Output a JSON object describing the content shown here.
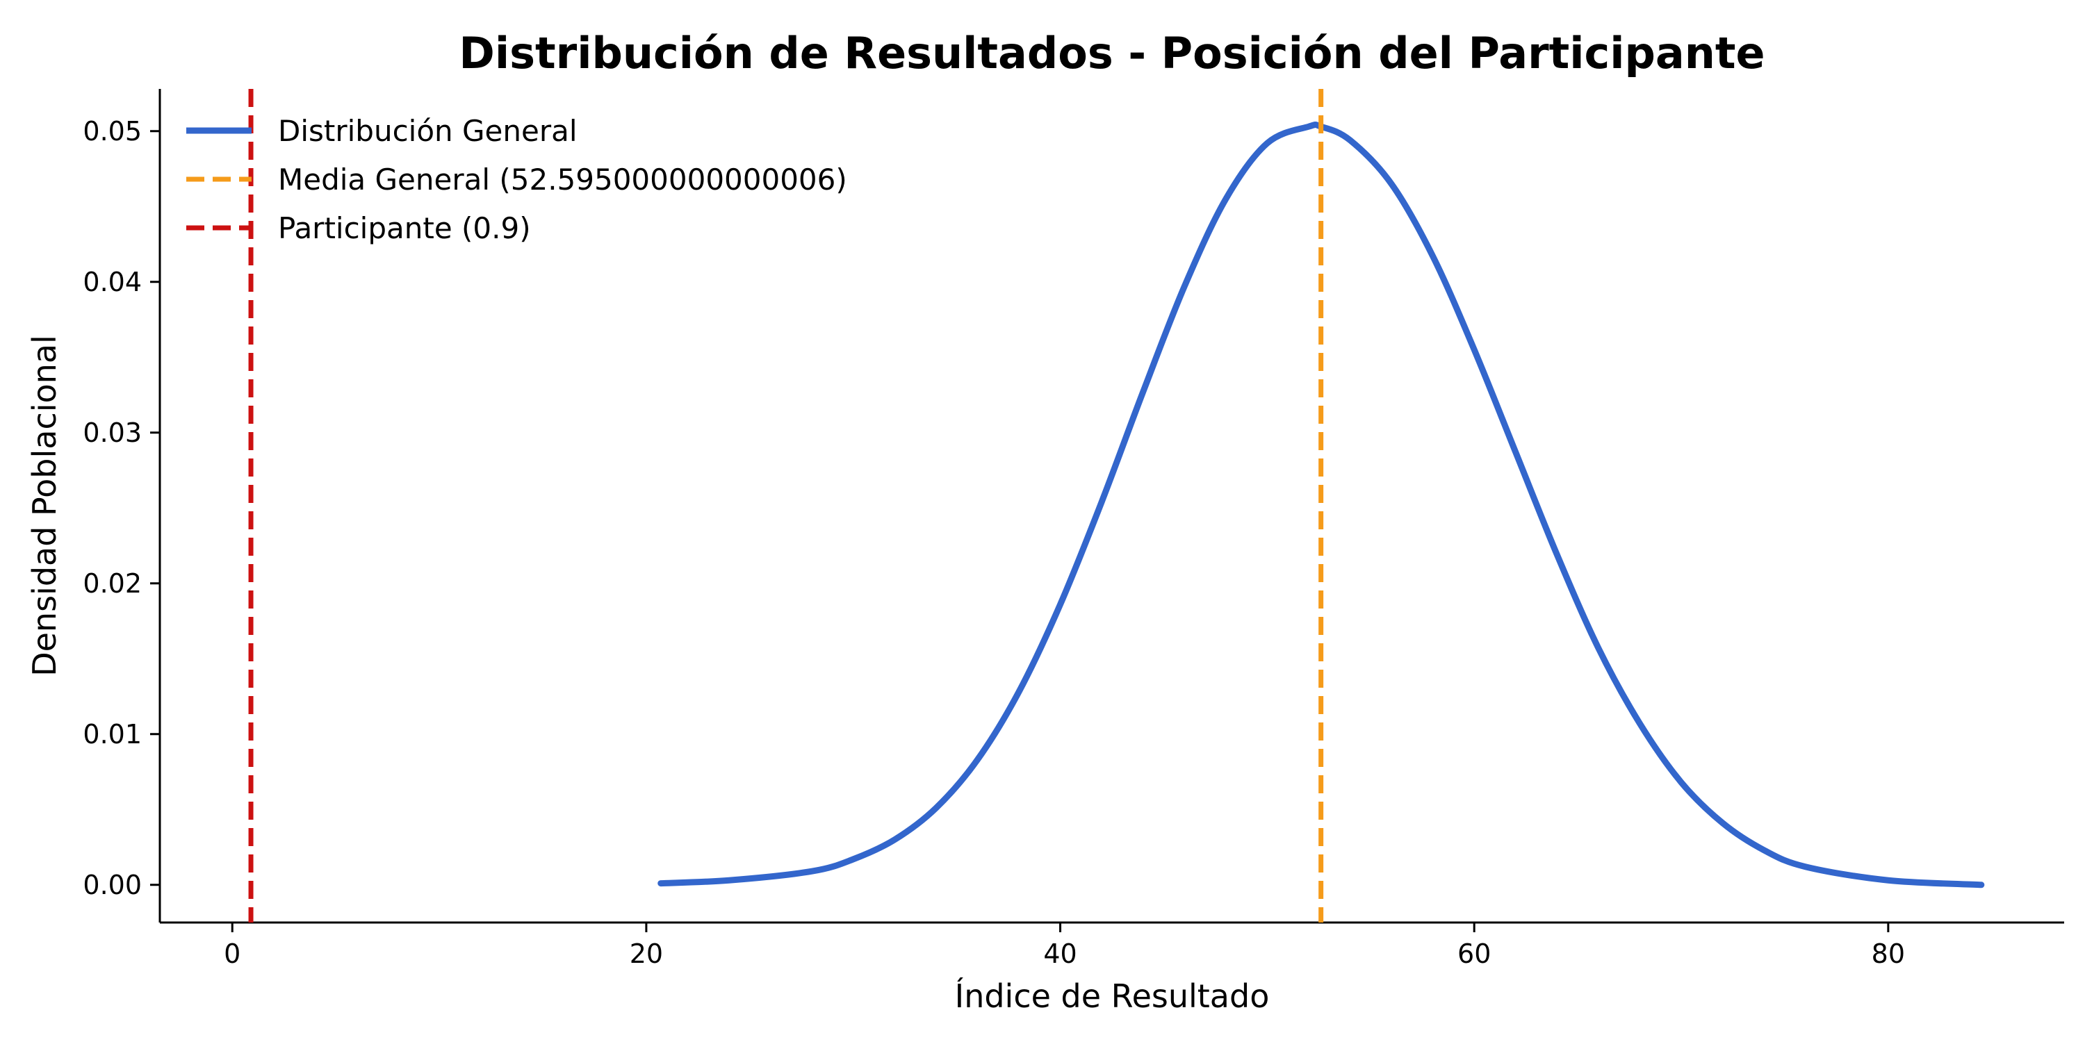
{
  "chart_data": {
    "type": "line",
    "title": "Distribución de Resultados - Posición del Participante",
    "xlabel": "Índice de Resultado",
    "ylabel": "Densidad Poblacional",
    "xlim": [
      -3.5,
      88.5
    ],
    "ylim": [
      -0.0025,
      0.0528
    ],
    "x_ticks": [
      0,
      20,
      40,
      60,
      80
    ],
    "x_tick_labels": [
      "0",
      "20",
      "40",
      "60",
      "80"
    ],
    "y_ticks": [
      0.0,
      0.01,
      0.02,
      0.03,
      0.04,
      0.05
    ],
    "y_tick_labels": [
      "0.00",
      "0.01",
      "0.02",
      "0.03",
      "0.04",
      "0.05"
    ],
    "grid": false,
    "legend_position": "top-left",
    "series": [
      {
        "name": "Distribución General",
        "style": "solid",
        "color": "#3366cc",
        "x": [
          20.7,
          24,
          28,
          30,
          32,
          34,
          36,
          38,
          40,
          42,
          44,
          46,
          48,
          50,
          52,
          52.6,
          54,
          56,
          58,
          60,
          62,
          64,
          66,
          68,
          70,
          72,
          74,
          76,
          80,
          84.5
        ],
        "y": [
          0.0001,
          0.0003,
          0.0009,
          0.0017,
          0.003,
          0.0051,
          0.0083,
          0.0128,
          0.0186,
          0.0254,
          0.0327,
          0.0397,
          0.0455,
          0.0492,
          0.0503,
          0.0503,
          0.0494,
          0.0465,
          0.0417,
          0.0355,
          0.0287,
          0.0219,
          0.0157,
          0.0107,
          0.0068,
          0.0041,
          0.0023,
          0.0012,
          0.0003,
          0.0
        ]
      },
      {
        "name": "Media General (52.595000000000006)",
        "style": "dashed",
        "orientation": "vertical",
        "color": "#f59b1a",
        "x_value": 52.595
      },
      {
        "name": "Participante (0.9)",
        "style": "dashed",
        "orientation": "vertical",
        "color": "#cc1111",
        "x_value": 0.9
      }
    ]
  }
}
